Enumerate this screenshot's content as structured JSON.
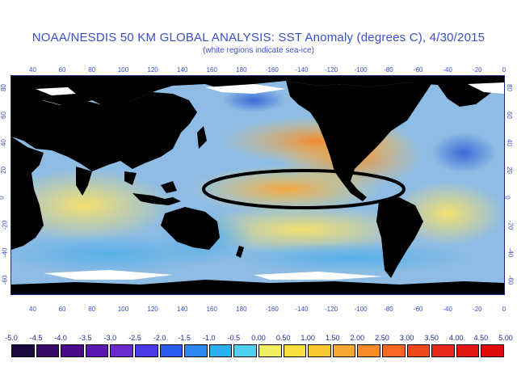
{
  "header": {
    "title": "NOAA/NESDIS 50 KM GLOBAL ANALYSIS: SST Anomaly (degrees C), 4/30/2015",
    "subtitle": "(white regions indicate sea-ice)"
  },
  "map": {
    "lon_ticks_top": [
      "40",
      "60",
      "80",
      "100",
      "120",
      "140",
      "160",
      "180",
      "-160",
      "-140",
      "-120",
      "-100",
      "-80",
      "-60",
      "-40",
      "-20",
      "0"
    ],
    "lon_ticks_bottom": [
      "40",
      "60",
      "80",
      "100",
      "120",
      "140",
      "160",
      "180",
      "-160",
      "-140",
      "-120",
      "-100",
      "-80",
      "-60",
      "-40",
      "-20",
      "0"
    ],
    "lat_ticks_left": [
      "80",
      "60",
      "40",
      "20",
      "0",
      "-20",
      "-40",
      "-60"
    ],
    "lat_ticks_right": [
      "80",
      "60",
      "40",
      "20",
      "0",
      "-20",
      "-40",
      "-60"
    ],
    "annotation": "black ellipse highlighting warm anomaly in equatorial eastern Pacific",
    "colors": {
      "land": "#000000",
      "ice": "#ffffff",
      "ocean_base": "#8fb6e0"
    }
  },
  "colorbar": {
    "labels": [
      "-5.0",
      "-4.5",
      "-4.0",
      "-3.5",
      "-3.0",
      "-2.5",
      "-2.0",
      "-1.5",
      "-1.0",
      "-0.5",
      "0.00",
      "0.50",
      "1.00",
      "1.50",
      "2.00",
      "2.50",
      "3.00",
      "3.50",
      "4.00",
      "4.50",
      "5.00"
    ],
    "colors": [
      "#1a0a40",
      "#3a0a6a",
      "#4a0a8a",
      "#5a18b0",
      "#6a2ad0",
      "#4a3ae8",
      "#2a5af0",
      "#2a8af0",
      "#2ab0f0",
      "#50d0f0",
      "#f0f060",
      "#f8e040",
      "#f8c830",
      "#f8a830",
      "#f88828",
      "#f86820",
      "#f04818",
      "#e82818",
      "#e01810",
      "#e00a0a"
    ]
  }
}
